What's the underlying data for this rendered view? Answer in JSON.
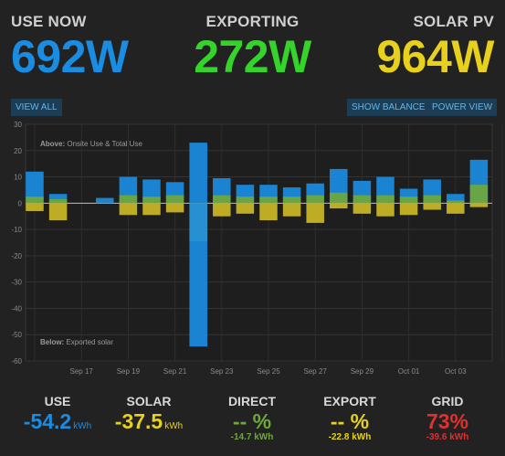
{
  "header": {
    "use": {
      "label": "USE NOW",
      "value": "692W",
      "color": "#1a8de3"
    },
    "export": {
      "label": "EXPORTING",
      "value": "272W",
      "color": "#35d42a"
    },
    "solar": {
      "label": "SOLAR PV",
      "value": "964W",
      "color": "#e8d11d"
    }
  },
  "buttons": {
    "view_all": "VIEW ALL",
    "show_balance": "SHOW BALANCE",
    "power_view": "POWER VIEW"
  },
  "chart_data": {
    "type": "bar",
    "annotation_above_bold": "Above:",
    "annotation_above_text": " Onsite Use & Total Use",
    "annotation_below_bold": "Below:",
    "annotation_below_text": " Exported solar",
    "ylim": [
      -60,
      30
    ],
    "yticks": [
      30,
      20,
      10,
      0,
      -10,
      -20,
      -30,
      -40,
      -50,
      -60
    ],
    "xtick_labels": [
      "Sep 17",
      "Sep 19",
      "Sep 21",
      "Sep 23",
      "Sep 25",
      "Sep 27",
      "Sep 29",
      "Oct 01",
      "Oct 03"
    ],
    "categories": [
      "Sep 15",
      "Sep 16",
      "Sep 17",
      "Sep 18",
      "Sep 19",
      "Sep 20",
      "Sep 21",
      "Sep 22",
      "Sep 23",
      "Sep 24",
      "Sep 25",
      "Sep 26",
      "Sep 27",
      "Sep 28",
      "Sep 29",
      "Sep 30",
      "Oct 01",
      "Oct 02",
      "Oct 03",
      "Oct 04",
      "Oct 05"
    ],
    "series": [
      {
        "key": "total_use",
        "color": "#1a8de3",
        "values": [
          12,
          3.5,
          0,
          2,
          10,
          9,
          8,
          23,
          9.5,
          7,
          7,
          6,
          7.5,
          13,
          8.5,
          10,
          5.5,
          9,
          3.5,
          16.5,
          0
        ]
      },
      {
        "key": "onsite_use",
        "color": "#6fa83a",
        "values": [
          2.5,
          1.5,
          0,
          0,
          3,
          2.5,
          3,
          0,
          3,
          2.5,
          2.5,
          2.5,
          3,
          4,
          3,
          3,
          2.5,
          3,
          1,
          7,
          0
        ]
      },
      {
        "key": "solar_below",
        "color": "#cbb925",
        "values": [
          -3,
          -6.5,
          0,
          0,
          -4.5,
          -4.5,
          -3.5,
          -14.5,
          -5,
          -4,
          -6.5,
          -5,
          -7.5,
          -2,
          -4,
          -5,
          -4.5,
          -2.5,
          -4,
          -1.5,
          0
        ]
      },
      {
        "key": "exported",
        "color": "#1a8de3",
        "values": [
          0,
          0,
          0,
          0,
          0,
          0,
          0,
          -54.5,
          0,
          0,
          0,
          0,
          0,
          0,
          0,
          0,
          0,
          0,
          0,
          0,
          0
        ]
      }
    ]
  },
  "summary": [
    {
      "label": "USE",
      "value": "-54.2",
      "unit": "kWh",
      "sub": "",
      "value_color": "#1a8de3",
      "sub_color": "#cccccc"
    },
    {
      "label": "SOLAR",
      "value": "-37.5",
      "unit": "kWh",
      "sub": "",
      "value_color": "#e8d11d",
      "sub_color": "#cccccc"
    },
    {
      "label": "DIRECT",
      "value": "-- %",
      "unit": "",
      "sub": "-14.7 kWh",
      "value_color": "#6fa83a",
      "sub_color": "#6fa83a"
    },
    {
      "label": "EXPORT",
      "value": "-- %",
      "unit": "",
      "sub": "-22.8 kWh",
      "value_color": "#e8d11d",
      "sub_color": "#e8d11d"
    },
    {
      "label": "GRID",
      "value": "73%",
      "unit": "",
      "sub": "-39.6 kWh",
      "value_color": "#e03030",
      "sub_color": "#e03030"
    }
  ]
}
